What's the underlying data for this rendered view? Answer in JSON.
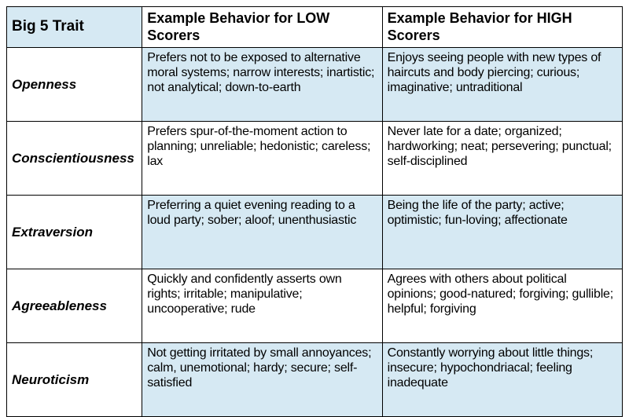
{
  "table": {
    "type": "table",
    "columns": 3,
    "column_widths_pct": [
      22,
      39,
      39
    ],
    "border_color": "#000000",
    "background_color": "#ffffff",
    "shaded_row_color": "#d6e9f3",
    "header_trait_bg": "#d6e9f3",
    "font_family": "Helvetica Neue, Arial, sans-serif",
    "header_fontsize": 18,
    "trait_fontsize": 17,
    "desc_fontsize": 16,
    "headers": {
      "trait": "Big 5 Trait",
      "low": "Example Behavior for LOW Scorers",
      "high": "Example Behavior for HIGH Scorers"
    },
    "rows": [
      {
        "shaded": true,
        "trait": "Openness",
        "low": "Prefers not to be exposed to alternative moral systems; narrow interests; inartistic; not analytical; down-to-earth",
        "high": "Enjoys seeing people with new types of haircuts and body piercing; curious; imaginative; untraditional"
      },
      {
        "shaded": false,
        "trait": "Conscientiousness",
        "low": "Prefers spur-of-the-moment action to planning; unreliable; hedonistic; careless; lax",
        "high": "Never late for a date; organized; hardworking; neat; persevering; punctual; self-disciplined"
      },
      {
        "shaded": true,
        "trait": "Extraversion",
        "low": "Preferring a quiet evening reading to a loud party; sober; aloof; unenthusiastic",
        "high": "Being the life of the party; active; optimistic; fun-loving; affectionate"
      },
      {
        "shaded": false,
        "trait": "Agreeableness",
        "low": "Quickly and confidently asserts own rights; irritable; manipulative; uncooperative; rude",
        "high": "Agrees with others about political opinions; good-natured; forgiving; gullible; helpful; forgiving"
      },
      {
        "shaded": true,
        "trait": "Neuroticism",
        "low": "Not getting irritated by small annoyances; calm, unemotional; hardy; secure; self-satisfied",
        "high": "Constantly worrying about little things; insecure; hypochondriacal; feeling inadequate"
      }
    ]
  }
}
